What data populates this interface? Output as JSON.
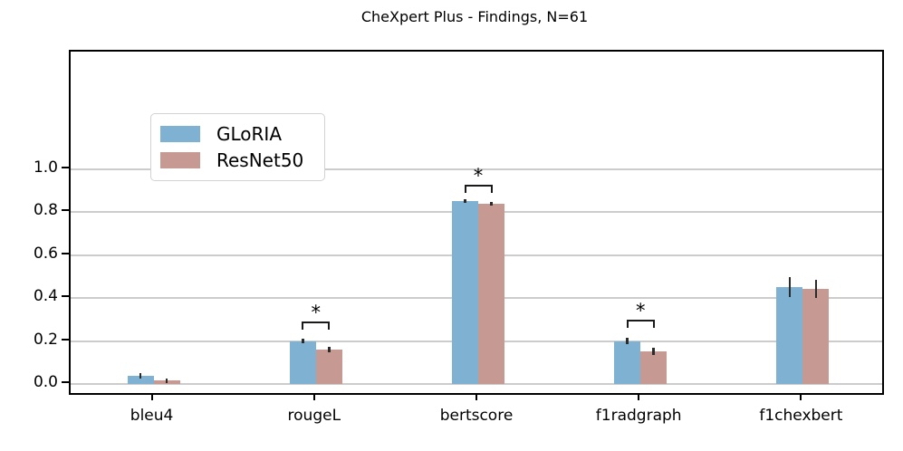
{
  "chart_data": {
    "type": "bar",
    "title": "CheXpert Plus - Findings, N=61",
    "categories": [
      "bleu4",
      "rougeL",
      "bertscore",
      "f1radgraph",
      "f1chexbert"
    ],
    "series": [
      {
        "name": "GLoRIA",
        "color": "#7fb1d3",
        "values": [
          0.037,
          0.2,
          0.851,
          0.2,
          0.451
        ],
        "errors": [
          0.013,
          0.012,
          0.008,
          0.015,
          0.046
        ]
      },
      {
        "name": "ResNet50",
        "color": "#c69a93",
        "values": [
          0.016,
          0.16,
          0.838,
          0.152,
          0.443
        ],
        "errors": [
          0.01,
          0.012,
          0.008,
          0.015,
          0.044
        ]
      }
    ],
    "errorbar_color": "#2b2b2b",
    "grid": true,
    "grid_color": "#cccccc",
    "yticks": [
      0.0,
      0.2,
      0.4,
      0.6,
      0.8,
      1.0
    ],
    "ytick_labels": [
      "0.0",
      "0.2",
      "0.4",
      "0.6",
      "0.8",
      "1.0"
    ],
    "ylim": [
      -0.045,
      1.545
    ],
    "legend_position": "upper left",
    "significance": [
      {
        "category": "rougeL",
        "label": "*",
        "bracket_y": 0.29
      },
      {
        "category": "bertscore",
        "label": "*",
        "bracket_y": 0.93
      },
      {
        "category": "f1radgraph",
        "label": "*",
        "bracket_y": 0.3
      }
    ]
  },
  "legend": {
    "items": [
      {
        "label": "GLoRIA",
        "color": "#7fb1d3"
      },
      {
        "label": "ResNet50",
        "color": "#c69a93"
      }
    ]
  }
}
